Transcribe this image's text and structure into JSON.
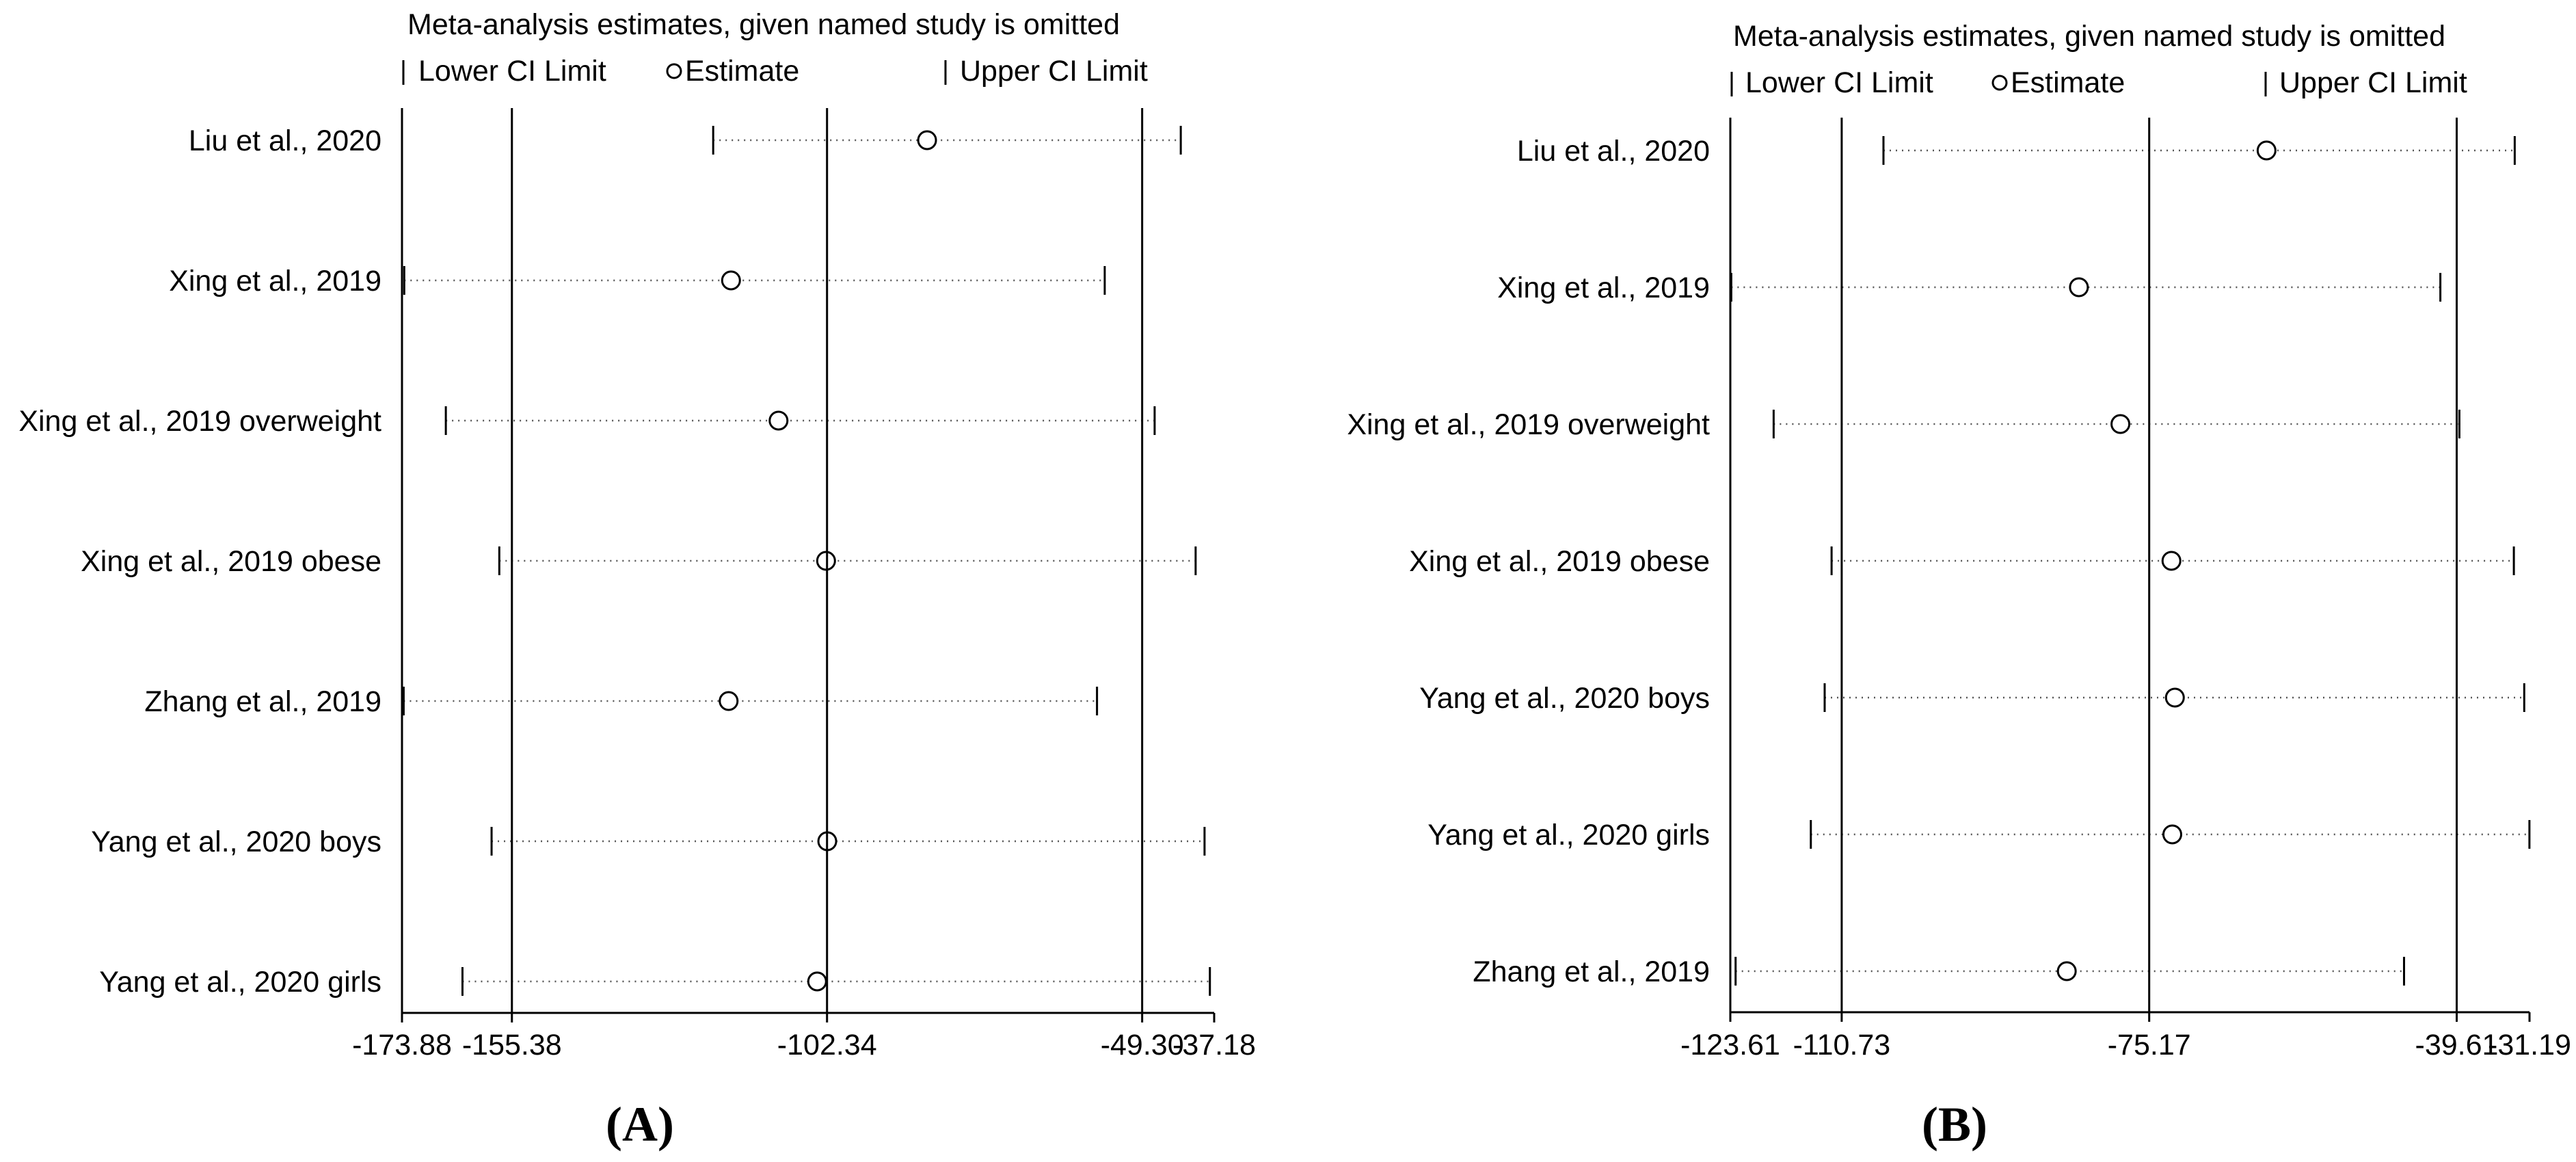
{
  "chart_data": [
    {
      "type": "forest",
      "panel_label": "(A)",
      "panel_letter": "A",
      "title": "Meta-analysis estimates, given named study is omitted",
      "legend": {
        "lower": "Lower CI Limit",
        "estimate": "Estimate",
        "upper": "Upper CI Limit"
      },
      "xlim": [
        -173.88,
        -37.18
      ],
      "x_ticks": [
        "-173.88",
        "-155.38",
        "-102.34",
        "-49.30",
        "-37.18"
      ],
      "reference_lines": [
        -155.38,
        -102.34,
        -49.3
      ],
      "studies": [
        {
          "label": "Liu et al., 2020",
          "lower": -121.5,
          "estimate": -85.5,
          "upper": -42.8
        },
        {
          "label": "Xing et al., 2019",
          "lower": -173.5,
          "estimate": -118.5,
          "upper": -55.6
        },
        {
          "label": "Xing et al., 2019 overweight",
          "lower": -166.5,
          "estimate": -110.5,
          "upper": -47.2
        },
        {
          "label": "Xing et al., 2019 obese",
          "lower": -157.5,
          "estimate": -102.5,
          "upper": -40.3
        },
        {
          "label": "Zhang et al., 2019",
          "lower": -173.6,
          "estimate": -118.9,
          "upper": -56.9
        },
        {
          "label": "Yang et al., 2020 boys",
          "lower": -158.8,
          "estimate": -102.3,
          "upper": -38.8
        },
        {
          "label": "Yang et al., 2020 girls",
          "lower": -163.7,
          "estimate": -104.0,
          "upper": -37.9
        }
      ]
    },
    {
      "type": "forest",
      "panel_label": "(B)",
      "panel_letter": "B",
      "title": "Meta-analysis estimates, given named study is omitted",
      "legend": {
        "lower": "Lower CI Limit",
        "estimate": "Estimate",
        "upper": "Upper CI Limit"
      },
      "xlim": [
        -123.61,
        -31.19
      ],
      "x_ticks": [
        "-123.61",
        "-110.73",
        "-75.17",
        "-39.61",
        "-31.19"
      ],
      "reference_lines": [
        -110.73,
        -75.17,
        -39.61
      ],
      "studies": [
        {
          "label": "Liu et al., 2020",
          "lower": -105.9,
          "estimate": -61.6,
          "upper": -32.9
        },
        {
          "label": "Xing et al., 2019",
          "lower": -123.5,
          "estimate": -83.3,
          "upper": -41.5
        },
        {
          "label": "Xing et al., 2019 overweight",
          "lower": -118.6,
          "estimate": -78.5,
          "upper": -39.3
        },
        {
          "label": "Xing et al., 2019 obese",
          "lower": -111.9,
          "estimate": -72.6,
          "upper": -33.0
        },
        {
          "label": "Yang et al., 2020 boys",
          "lower": -112.7,
          "estimate": -72.2,
          "upper": -31.8
        },
        {
          "label": "Yang et al., 2020 girls",
          "lower": -114.3,
          "estimate": -72.5,
          "upper": -31.2
        },
        {
          "label": "Zhang et al., 2019",
          "lower": -123.0,
          "estimate": -84.7,
          "upper": -45.7
        }
      ]
    }
  ]
}
